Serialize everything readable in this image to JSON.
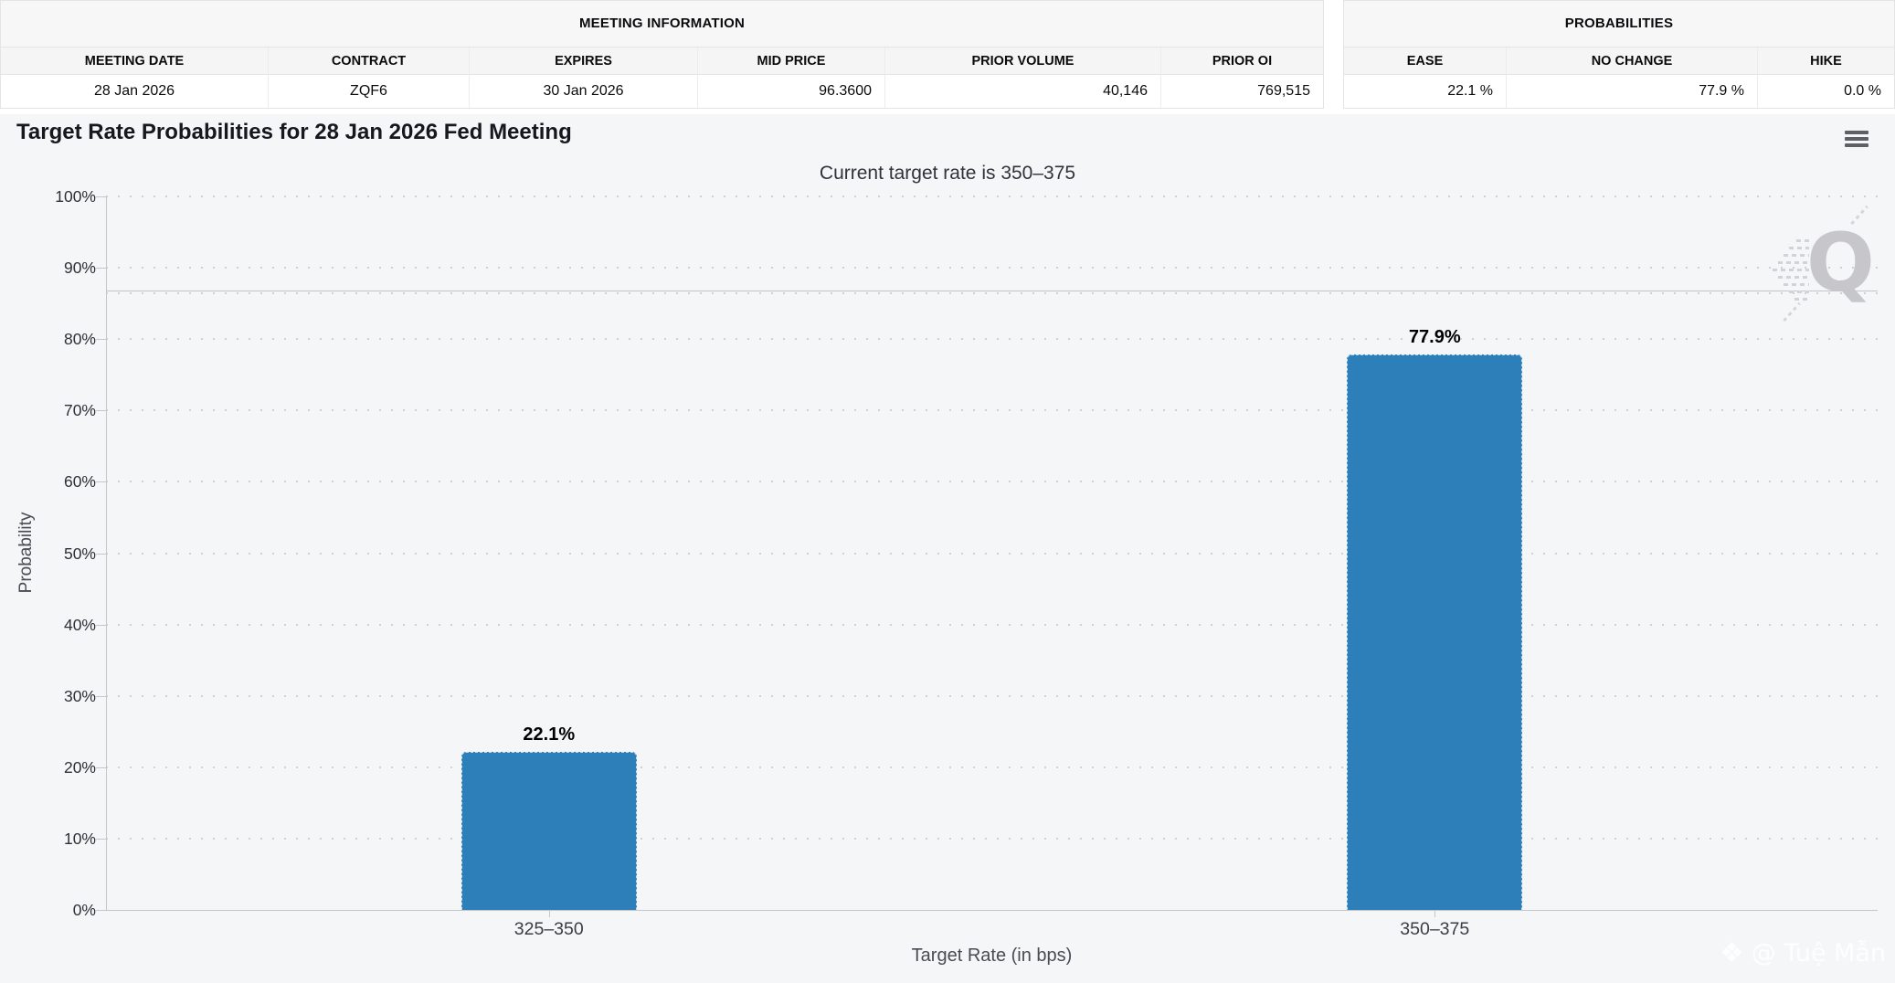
{
  "meeting_information": {
    "title": "MEETING INFORMATION",
    "columns": [
      "MEETING DATE",
      "CONTRACT",
      "EXPIRES",
      "MID PRICE",
      "PRIOR VOLUME",
      "PRIOR OI"
    ],
    "values": [
      "28 Jan 2026",
      "ZQF6",
      "30 Jan 2026",
      "96.3600",
      "40,146",
      "769,515"
    ]
  },
  "probabilities": {
    "title": "PROBABILITIES",
    "columns": [
      "EASE",
      "NO CHANGE",
      "HIKE"
    ],
    "values": [
      "22.1 %",
      "77.9 %",
      "0.0 %"
    ]
  },
  "chart_data": {
    "type": "bar",
    "title": "Target Rate Probabilities for 28 Jan 2026 Fed Meeting",
    "subtitle": "Current target rate is 350–375",
    "categories": [
      "325–350",
      "350–375"
    ],
    "values": [
      22.1,
      77.9
    ],
    "data_labels": [
      "22.1%",
      "77.9%"
    ],
    "xlabel": "Target Rate (in bps)",
    "ylabel": "Probability",
    "ylim": [
      0,
      100
    ],
    "ytick_step": 10,
    "ytick_suffix": "%",
    "grid": "dotted-horizontal",
    "legend": "none",
    "reference_line_y": 86.8,
    "bar_color": "#2c7fb8"
  },
  "menu": {
    "icon": "hamburger-menu"
  },
  "watermarks": {
    "q_logo": "Q",
    "credit": "@ Tuệ Mẫn",
    "credit_icon": "diamond"
  },
  "colors": {
    "chart_background": "#f5f6f7",
    "axis_line": "#c6c6ca",
    "grid_dot": "#cfcfd4",
    "bar": "#2c7fb8"
  }
}
